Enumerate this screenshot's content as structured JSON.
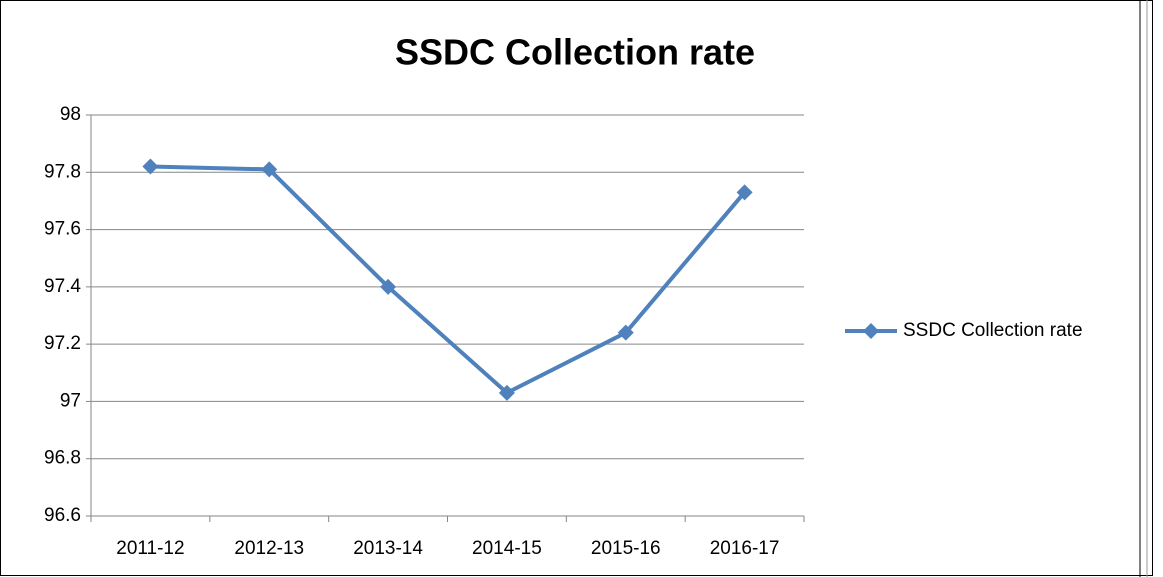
{
  "chart_data": {
    "type": "line",
    "title": "SSDC Collection rate",
    "categories": [
      "2011-12",
      "2012-13",
      "2013-14",
      "2014-15",
      "2015-16",
      "2016-17"
    ],
    "series": [
      {
        "name": "SSDC Collection rate",
        "color": "#4f81bd",
        "values": [
          97.82,
          97.81,
          97.4,
          97.03,
          97.24,
          97.73
        ]
      }
    ],
    "ylim": [
      96.6,
      98
    ],
    "yticks": [
      96.6,
      96.8,
      97,
      97.2,
      97.4,
      97.6,
      97.8,
      98
    ],
    "grid": true,
    "legend": "right"
  }
}
